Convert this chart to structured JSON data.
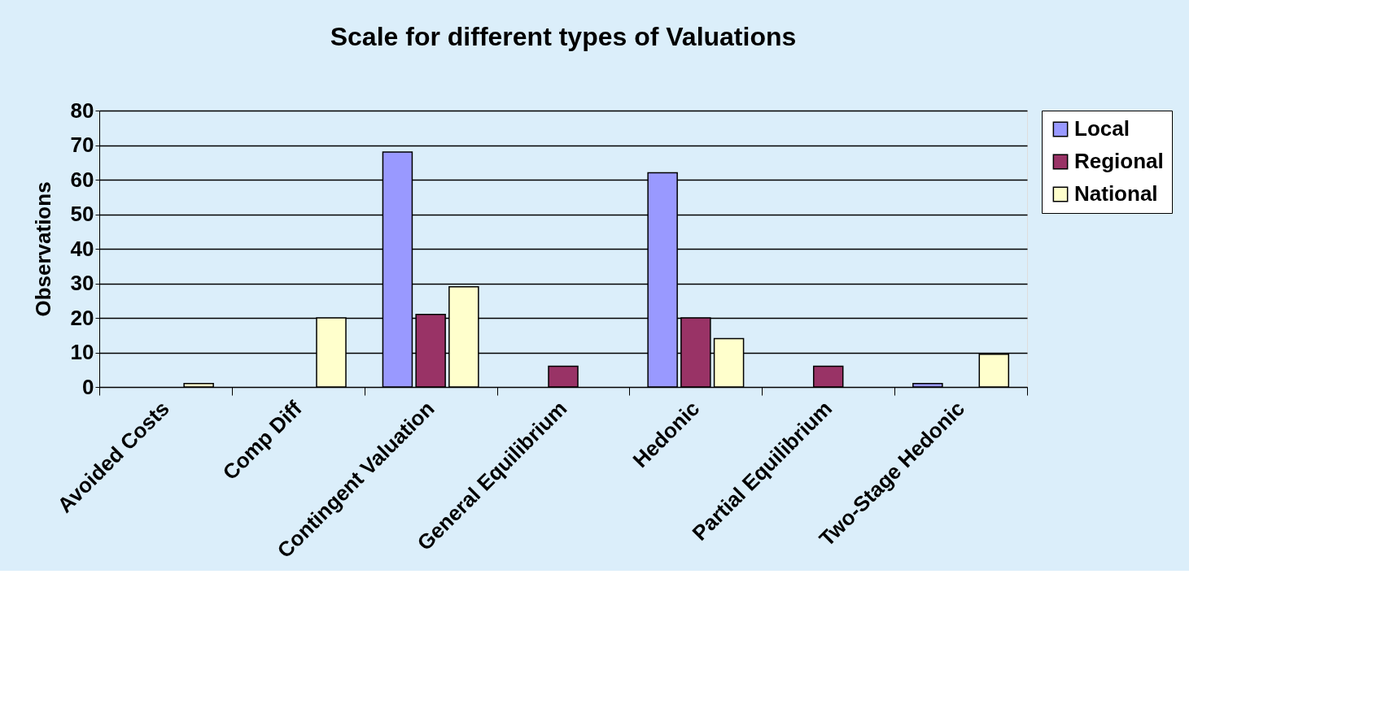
{
  "chart_data": {
    "type": "bar",
    "title": "Scale for different types of Valuations",
    "ylabel": "Observations",
    "categories": [
      "Avoided Costs",
      "Comp Diff",
      "Contingent Valuation",
      "General Equilibrium",
      "Hedonic",
      "Partial Equilibrium",
      "Two-Stage Hedonic"
    ],
    "series": [
      {
        "name": "Local",
        "color": "#9999ff",
        "values": [
          null,
          null,
          68,
          null,
          62,
          null,
          1
        ]
      },
      {
        "name": "Regional",
        "color": "#993366",
        "values": [
          null,
          null,
          21,
          6,
          20,
          6,
          null
        ]
      },
      {
        "name": "National",
        "color": "#ffffcc",
        "values": [
          1,
          20,
          29,
          null,
          14,
          null,
          9.5
        ]
      }
    ],
    "ylim": [
      0,
      80
    ],
    "yticks": [
      0,
      10,
      20,
      30,
      40,
      50,
      60,
      70,
      80
    ],
    "grid": "y",
    "legend": "right"
  }
}
